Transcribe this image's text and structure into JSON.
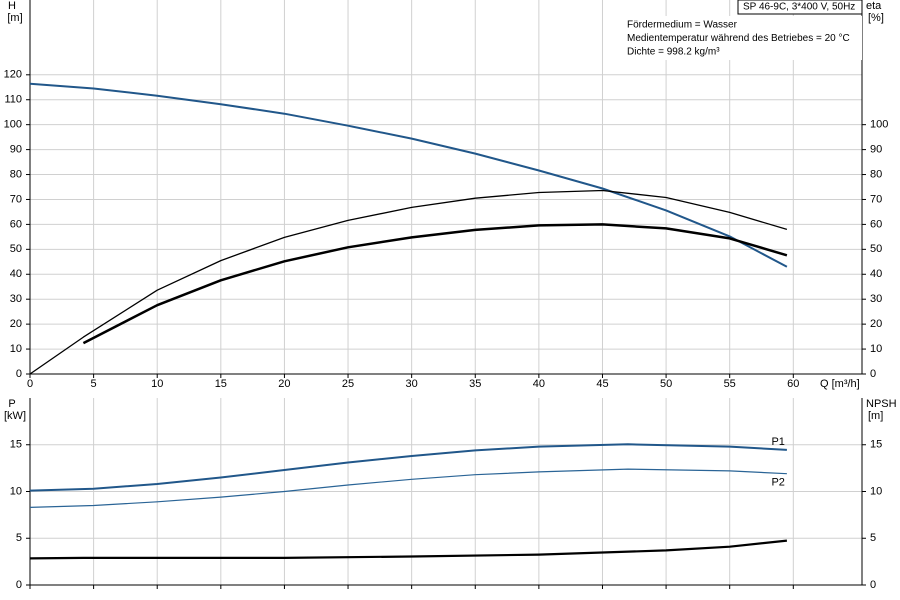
{
  "chart_data": [
    {
      "type": "line",
      "ylabel": "H",
      "yunit": "[m]",
      "y2label": "eta",
      "y2unit": "[%]",
      "xlabel": "Q [m³/h]",
      "title": "SP 46-9C, 3*400 V, 50Hz",
      "annotations": [
        "Fördermedium = Wasser",
        "Medientemperatur während des Betriebes = 20 °C",
        "Dichte = 998.2 kg/m³"
      ],
      "xlim": [
        0,
        65.4
      ],
      "xticks": [
        0,
        5,
        10,
        15,
        20,
        25,
        30,
        35,
        40,
        45,
        50,
        55,
        60
      ],
      "ylim": [
        0,
        150
      ],
      "yticks": [
        0,
        10,
        20,
        30,
        40,
        50,
        60,
        70,
        80,
        90,
        100,
        110,
        120
      ],
      "y2lim": [
        0,
        150
      ],
      "y2ticks": [
        0,
        10,
        20,
        30,
        40,
        50,
        60,
        70,
        80,
        90,
        100
      ],
      "grid": true,
      "series": [
        {
          "color": "#21578a",
          "width": 2,
          "x": [
            0,
            5,
            10,
            15,
            20,
            25,
            30,
            35,
            40,
            45,
            50,
            55,
            59.5
          ],
          "values": [
            116.4,
            114.5,
            111.6,
            108.2,
            104.4,
            99.6,
            94.4,
            88.4,
            81.6,
            74.4,
            65.6,
            55.2,
            43
          ]
        },
        {
          "color": "#000000",
          "width": 1.3,
          "axis": "y2",
          "x": [
            0,
            4.2,
            10,
            15,
            20,
            25,
            30,
            35,
            40,
            45,
            50,
            55,
            59.5
          ],
          "values": [
            0,
            14.8,
            33.6,
            45.5,
            54.8,
            61.6,
            66.8,
            70.5,
            72.8,
            73.6,
            70.8,
            64.8,
            58
          ]
        },
        {
          "color": "#000000",
          "width": 2.5,
          "axis": "y2",
          "x": [
            4.2,
            10,
            15,
            20,
            25,
            30,
            35,
            40,
            45,
            50,
            55,
            59.5
          ],
          "values": [
            12.4,
            27.6,
            37.6,
            45.2,
            50.8,
            54.8,
            57.8,
            59.6,
            60,
            58.4,
            54.4,
            47.6
          ]
        }
      ]
    },
    {
      "type": "line",
      "ylabel": "P",
      "yunit": "[kW]",
      "y2label": "NPSH",
      "y2unit": "[m]",
      "xlim": [
        0,
        65.4
      ],
      "xticks": [
        0,
        5,
        10,
        15,
        20,
        25,
        30,
        35,
        40,
        45,
        50,
        55,
        60
      ],
      "ylim": [
        0,
        20
      ],
      "yticks": [
        0,
        5,
        10,
        15
      ],
      "y2lim": [
        0,
        20
      ],
      "y2ticks": [
        0,
        5,
        10,
        15
      ],
      "grid": true,
      "series": [
        {
          "label": "P1",
          "color": "#21578a",
          "width": 2,
          "x": [
            0,
            5,
            10,
            15,
            20,
            25,
            30,
            35,
            40,
            47,
            55,
            59.5
          ],
          "values": [
            10.1,
            10.3,
            10.8,
            11.5,
            12.3,
            13.1,
            13.8,
            14.4,
            14.8,
            15.05,
            14.8,
            14.45
          ]
        },
        {
          "label": "P2",
          "color": "#2a6496",
          "width": 1.2,
          "x": [
            0,
            5,
            10,
            15,
            20,
            25,
            30,
            35,
            40,
            47,
            55,
            59.5
          ],
          "values": [
            8.3,
            8.5,
            8.9,
            9.4,
            10,
            10.7,
            11.3,
            11.8,
            12.1,
            12.4,
            12.2,
            11.9
          ]
        },
        {
          "color": "#000000",
          "width": 2.2,
          "axis": "y2",
          "x": [
            0,
            4.2,
            10,
            20,
            30,
            40,
            50,
            55,
            59.5
          ],
          "values": [
            2.85,
            2.9,
            2.9,
            2.9,
            3.05,
            3.25,
            3.7,
            4.1,
            4.75
          ]
        }
      ]
    }
  ]
}
